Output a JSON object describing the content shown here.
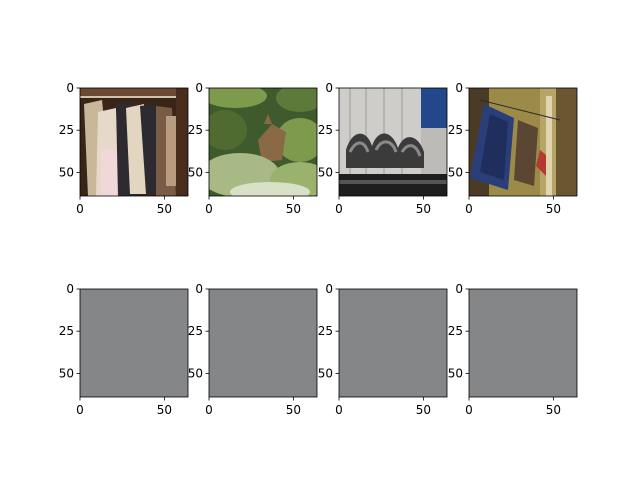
{
  "chart_data": [
    {
      "type": "image",
      "row": 0,
      "col": 0,
      "depicts": "jackets hanging on a clothes rail",
      "xlim": [
        0,
        64
      ],
      "ylim": [
        64,
        0
      ],
      "x_ticks": [
        0,
        50
      ],
      "y_ticks": [
        0,
        25,
        50
      ],
      "x_tick_labels": [
        "0",
        "50"
      ],
      "y_tick_labels": [
        "0",
        "25",
        "50"
      ],
      "palette": [
        "#3a2418",
        "#c9b79a",
        "#e7d9c9",
        "#2d2a30",
        "#7a5b46"
      ]
    },
    {
      "type": "image",
      "row": 0,
      "col": 1,
      "depicts": "deer among green bushes",
      "xlim": [
        0,
        64
      ],
      "ylim": [
        64,
        0
      ],
      "x_ticks": [
        0,
        50
      ],
      "y_ticks": [
        0,
        25,
        50
      ],
      "x_tick_labels": [
        "0",
        "50"
      ],
      "y_tick_labels": [
        "0",
        "25",
        "50"
      ],
      "palette": [
        "#3f5a2c",
        "#7e9a4c",
        "#a7b985",
        "#8a6a45",
        "#d9e0c8"
      ]
    },
    {
      "type": "image",
      "row": 0,
      "col": 2,
      "depicts": "graffiti on a railway freight car",
      "xlim": [
        0,
        64
      ],
      "ylim": [
        64,
        0
      ],
      "x_ticks": [
        0,
        50
      ],
      "y_ticks": [
        0,
        25,
        50
      ],
      "x_tick_labels": [
        "0",
        "50"
      ],
      "y_tick_labels": [
        "0",
        "25",
        "50"
      ],
      "palette": [
        "#d2d0cc",
        "#8c8a88",
        "#3c3b3c",
        "#23478a",
        "#1e1e1e"
      ]
    },
    {
      "type": "image",
      "row": 0,
      "col": 3,
      "depicts": "hanging decorative panels on a yellow wall",
      "xlim": [
        0,
        64
      ],
      "ylim": [
        64,
        0
      ],
      "x_ticks": [
        0,
        50
      ],
      "y_ticks": [
        0,
        25,
        50
      ],
      "x_tick_labels": [
        "0",
        "50"
      ],
      "y_tick_labels": [
        "0",
        "25",
        "50"
      ],
      "palette": [
        "#9c8a49",
        "#4b3b25",
        "#2a3f7a",
        "#b33a30",
        "#e0d5b0"
      ]
    },
    {
      "type": "image",
      "row": 1,
      "col": 0,
      "depicts": "uniform gray image",
      "xlim": [
        0,
        64
      ],
      "ylim": [
        64,
        0
      ],
      "x_ticks": [
        0,
        50
      ],
      "y_ticks": [
        0,
        25,
        50
      ],
      "x_tick_labels": [
        "0",
        "50"
      ],
      "y_tick_labels": [
        "0",
        "25",
        "50"
      ],
      "palette": [
        "#858687"
      ]
    },
    {
      "type": "image",
      "row": 1,
      "col": 1,
      "depicts": "uniform gray image",
      "xlim": [
        0,
        64
      ],
      "ylim": [
        64,
        0
      ],
      "x_ticks": [
        0,
        50
      ],
      "y_ticks": [
        0,
        25,
        50
      ],
      "x_tick_labels": [
        "0",
        "50"
      ],
      "y_tick_labels": [
        "0",
        "25",
        "50"
      ],
      "palette": [
        "#858687"
      ]
    },
    {
      "type": "image",
      "row": 1,
      "col": 2,
      "depicts": "uniform gray image",
      "xlim": [
        0,
        64
      ],
      "ylim": [
        64,
        0
      ],
      "x_ticks": [
        0,
        50
      ],
      "y_ticks": [
        0,
        25,
        50
      ],
      "x_tick_labels": [
        "0",
        "50"
      ],
      "y_tick_labels": [
        "0",
        "25",
        "50"
      ],
      "palette": [
        "#858687"
      ]
    },
    {
      "type": "image",
      "row": 1,
      "col": 3,
      "depicts": "uniform gray image",
      "xlim": [
        0,
        64
      ],
      "ylim": [
        64,
        0
      ],
      "x_ticks": [
        0,
        50
      ],
      "y_ticks": [
        0,
        25,
        50
      ],
      "x_tick_labels": [
        "0",
        "50"
      ],
      "y_tick_labels": [
        "0",
        "25",
        "50"
      ],
      "palette": [
        "#858687"
      ]
    }
  ]
}
